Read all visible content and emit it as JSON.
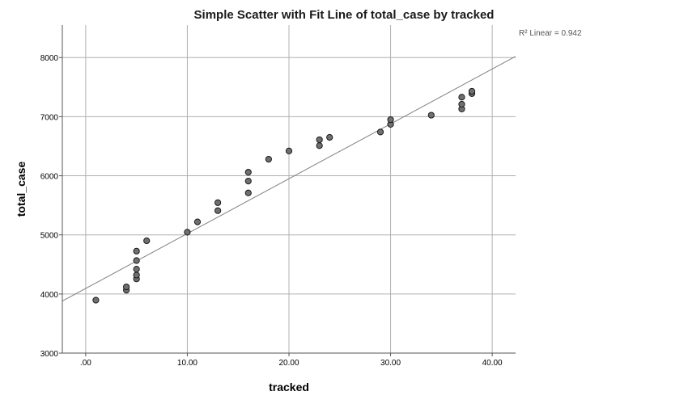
{
  "chart_data": {
    "type": "scatter",
    "title": "Simple Scatter with Fit Line of total_case by tracked",
    "xlabel": "tracked",
    "ylabel": "total_case",
    "xlim": [
      -2.3,
      42.3
    ],
    "ylim": [
      3000,
      8550
    ],
    "x_ticks": [
      {
        "value": 0,
        "label": ".00"
      },
      {
        "value": 10,
        "label": "10.00"
      },
      {
        "value": 20,
        "label": "20.00"
      },
      {
        "value": 30,
        "label": "30.00"
      },
      {
        "value": 40,
        "label": "40.00"
      }
    ],
    "y_ticks": [
      {
        "value": 3000,
        "label": "3000"
      },
      {
        "value": 4000,
        "label": "4000"
      },
      {
        "value": 5000,
        "label": "5000"
      },
      {
        "value": 6000,
        "label": "6000"
      },
      {
        "value": 7000,
        "label": "7000"
      },
      {
        "value": 8000,
        "label": "8000"
      }
    ],
    "grid": true,
    "r2_label": "R² Linear = 0.942",
    "fit_line": {
      "intercept": 4094,
      "slope": 92.8
    },
    "colors": {
      "point_fill": "#707070",
      "point_stroke": "#1a1a1a",
      "fit_line": "#808080",
      "grid": "#b0b0b0",
      "axis": "#555555"
    },
    "points": [
      {
        "x": 1,
        "y": 3895
      },
      {
        "x": 4,
        "y": 4065
      },
      {
        "x": 4,
        "y": 4120
      },
      {
        "x": 5,
        "y": 4255
      },
      {
        "x": 5,
        "y": 4320
      },
      {
        "x": 5,
        "y": 4420
      },
      {
        "x": 5,
        "y": 4565
      },
      {
        "x": 5,
        "y": 4725
      },
      {
        "x": 6,
        "y": 4900
      },
      {
        "x": 10,
        "y": 5045
      },
      {
        "x": 11,
        "y": 5220
      },
      {
        "x": 13,
        "y": 5410
      },
      {
        "x": 13,
        "y": 5545
      },
      {
        "x": 16,
        "y": 5710
      },
      {
        "x": 16,
        "y": 5910
      },
      {
        "x": 16,
        "y": 6060
      },
      {
        "x": 18,
        "y": 6280
      },
      {
        "x": 20,
        "y": 6420
      },
      {
        "x": 23,
        "y": 6510
      },
      {
        "x": 23,
        "y": 6610
      },
      {
        "x": 24,
        "y": 6650
      },
      {
        "x": 29,
        "y": 6740
      },
      {
        "x": 30,
        "y": 6870
      },
      {
        "x": 30,
        "y": 6950
      },
      {
        "x": 34,
        "y": 7025
      },
      {
        "x": 37,
        "y": 7130
      },
      {
        "x": 37,
        "y": 7210
      },
      {
        "x": 37,
        "y": 7330
      },
      {
        "x": 38,
        "y": 7390
      },
      {
        "x": 38,
        "y": 7430
      }
    ]
  }
}
